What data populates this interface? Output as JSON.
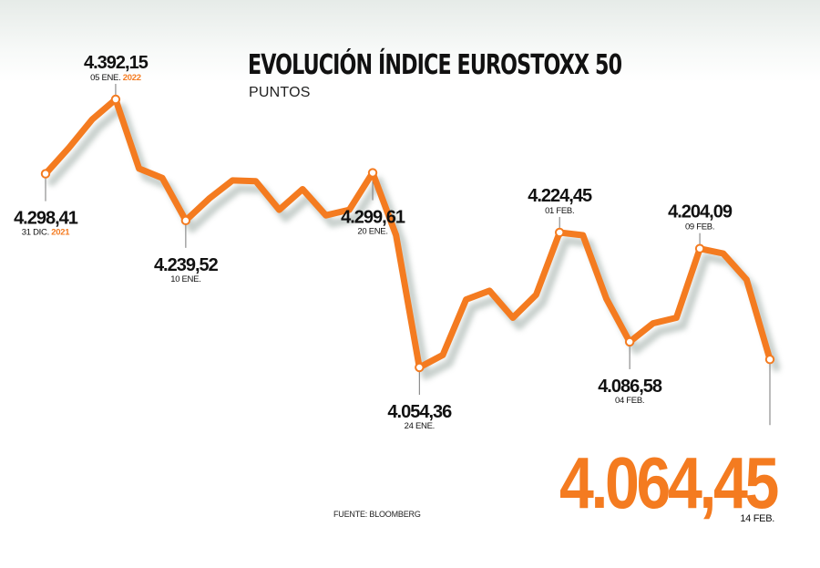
{
  "header": {
    "title": "EVOLUCIÓN ÍNDICE EUROSTOXX 50",
    "subtitle": "PUNTOS"
  },
  "footer": {
    "source": "FUENTE: BLOOMBERG"
  },
  "colors": {
    "line": "#f47b20",
    "year_highlight": "#f47b20",
    "shadow": "#c2cbc7",
    "text": "#111111"
  },
  "chart_data": {
    "type": "line",
    "title": "EVOLUCIÓN ÍNDICE EUROSTOXX 50",
    "subtitle": "PUNTOS",
    "xlabel": "",
    "ylabel": "",
    "ylim": [
      4040,
      4400
    ],
    "grid": false,
    "series": [
      {
        "values": [
          4298.41,
          4331,
          4367,
          4392.15,
          4305,
          4293,
          4239.52,
          4267,
          4290,
          4289,
          4253,
          4279,
          4246,
          4253,
          4299.61,
          4221,
          4054.36,
          4070,
          4140,
          4151,
          4117,
          4146,
          4224.45,
          4221,
          4141,
          4086.58,
          4110,
          4117,
          4204.09,
          4198,
          4165,
          4064.45
        ]
      }
    ],
    "annotations": [
      {
        "index": 0,
        "value": "4.298,41",
        "date": "31 DIC.",
        "year": "2021",
        "position": "below"
      },
      {
        "index": 3,
        "value": "4.392,15",
        "date": "05 ENE.",
        "year": "2022",
        "position": "above"
      },
      {
        "index": 6,
        "value": "4.239,52",
        "date": "10 ENE.",
        "position": "below"
      },
      {
        "index": 14,
        "value": "4.299,61",
        "date": "20 ENE.",
        "position": "below"
      },
      {
        "index": 16,
        "value": "4.054,36",
        "date": "24 ENE.",
        "position": "below"
      },
      {
        "index": 22,
        "value": "4.224,45",
        "date": "01 FEB.",
        "position": "above"
      },
      {
        "index": 25,
        "value": "4.086,58",
        "date": "04 FEB.",
        "position": "below"
      },
      {
        "index": 28,
        "value": "4.204,09",
        "date": "09 FEB.",
        "position": "above"
      },
      {
        "index": 31,
        "value": "4.064,45",
        "date": "14 FEB.",
        "position": "big"
      }
    ]
  }
}
